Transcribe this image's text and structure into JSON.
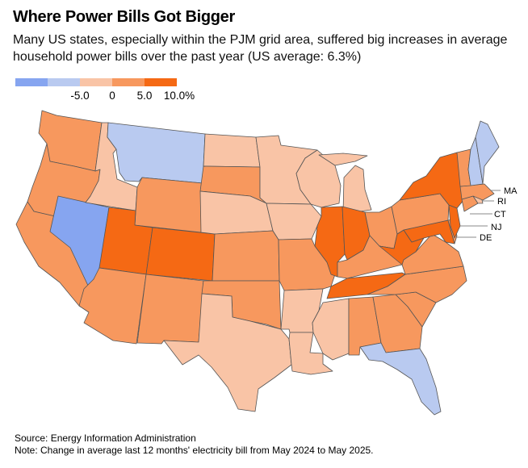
{
  "header": {
    "title": "Where Power Bills Got Bigger",
    "subtitle": "Many US states, especially within the PJM grid area, suffered big increases in average household power bills over the past year (US average: 6.3%)"
  },
  "legend": {
    "bins": [
      {
        "range": "< -5.0",
        "color": "#86A5F0"
      },
      {
        "range": "-5.0 to 0",
        "color": "#B9CAF0"
      },
      {
        "range": "0 to 5.0",
        "color": "#F9C4A6"
      },
      {
        "range": "5.0 to 10.0",
        "color": "#F7985E"
      },
      {
        "range": "> 10.0",
        "color": "#F56914"
      }
    ],
    "tick_labels": [
      "-5.0",
      "0",
      "5.0",
      "10.0%"
    ]
  },
  "chart_data": {
    "type": "choropleth",
    "title": "Where Power Bills Got Bigger",
    "subtitle": "Many US states, especially within the PJM grid area, suffered big increases in average household power bills over the past year (US average: 6.3%)",
    "metric": "Change in average last 12 months' electricity bill, May 2024 to May 2025 (%)",
    "us_average": 6.3,
    "bin_edges": [
      -5.0,
      0,
      5.0,
      10.0
    ],
    "states": {
      "WA": "5 to 10",
      "OR": "5 to 10",
      "CA": "5 to 10",
      "NV": "< -5",
      "ID": "0 to 5",
      "MT": "-5 to 0",
      "WY": "5 to 10",
      "UT": "> 10",
      "CO": "> 10",
      "AZ": "5 to 10",
      "NM": "5 to 10",
      "ND": "0 to 5",
      "SD": "5 to 10",
      "NE": "0 to 5",
      "KS": "5 to 10",
      "OK": "5 to 10",
      "TX": "0 to 5",
      "MN": "0 to 5",
      "IA": "0 to 5",
      "MO": "5 to 10",
      "AR": "0 to 5",
      "LA": "0 to 5",
      "WI": "0 to 5",
      "IL": "> 10",
      "MI": "0 to 5",
      "IN": "> 10",
      "OH": "5 to 10",
      "KY": "5 to 10",
      "TN": "> 10",
      "MS": "0 to 5",
      "AL": "5 to 10",
      "GA": "5 to 10",
      "FL": "-5 to 0",
      "SC": "5 to 10",
      "NC": "5 to 10",
      "VA": "5 to 10",
      "WV": "> 10",
      "MD": "> 10",
      "DE": "5 to 10",
      "PA": "5 to 10",
      "NJ": "> 10",
      "NY": "> 10",
      "CT": "5 to 10",
      "RI": "0 to 5",
      "MA": "5 to 10",
      "VT": "5 to 10",
      "NH": "-5 to 0",
      "ME": "-5 to 0"
    },
    "callout_labels": [
      "MA",
      "RI",
      "CT",
      "NJ",
      "DE"
    ]
  },
  "footer": {
    "source": "Source: Energy Information Administration",
    "note": "Note: Change in average last 12 months' electricity bill from May 2024 to May 2025."
  }
}
